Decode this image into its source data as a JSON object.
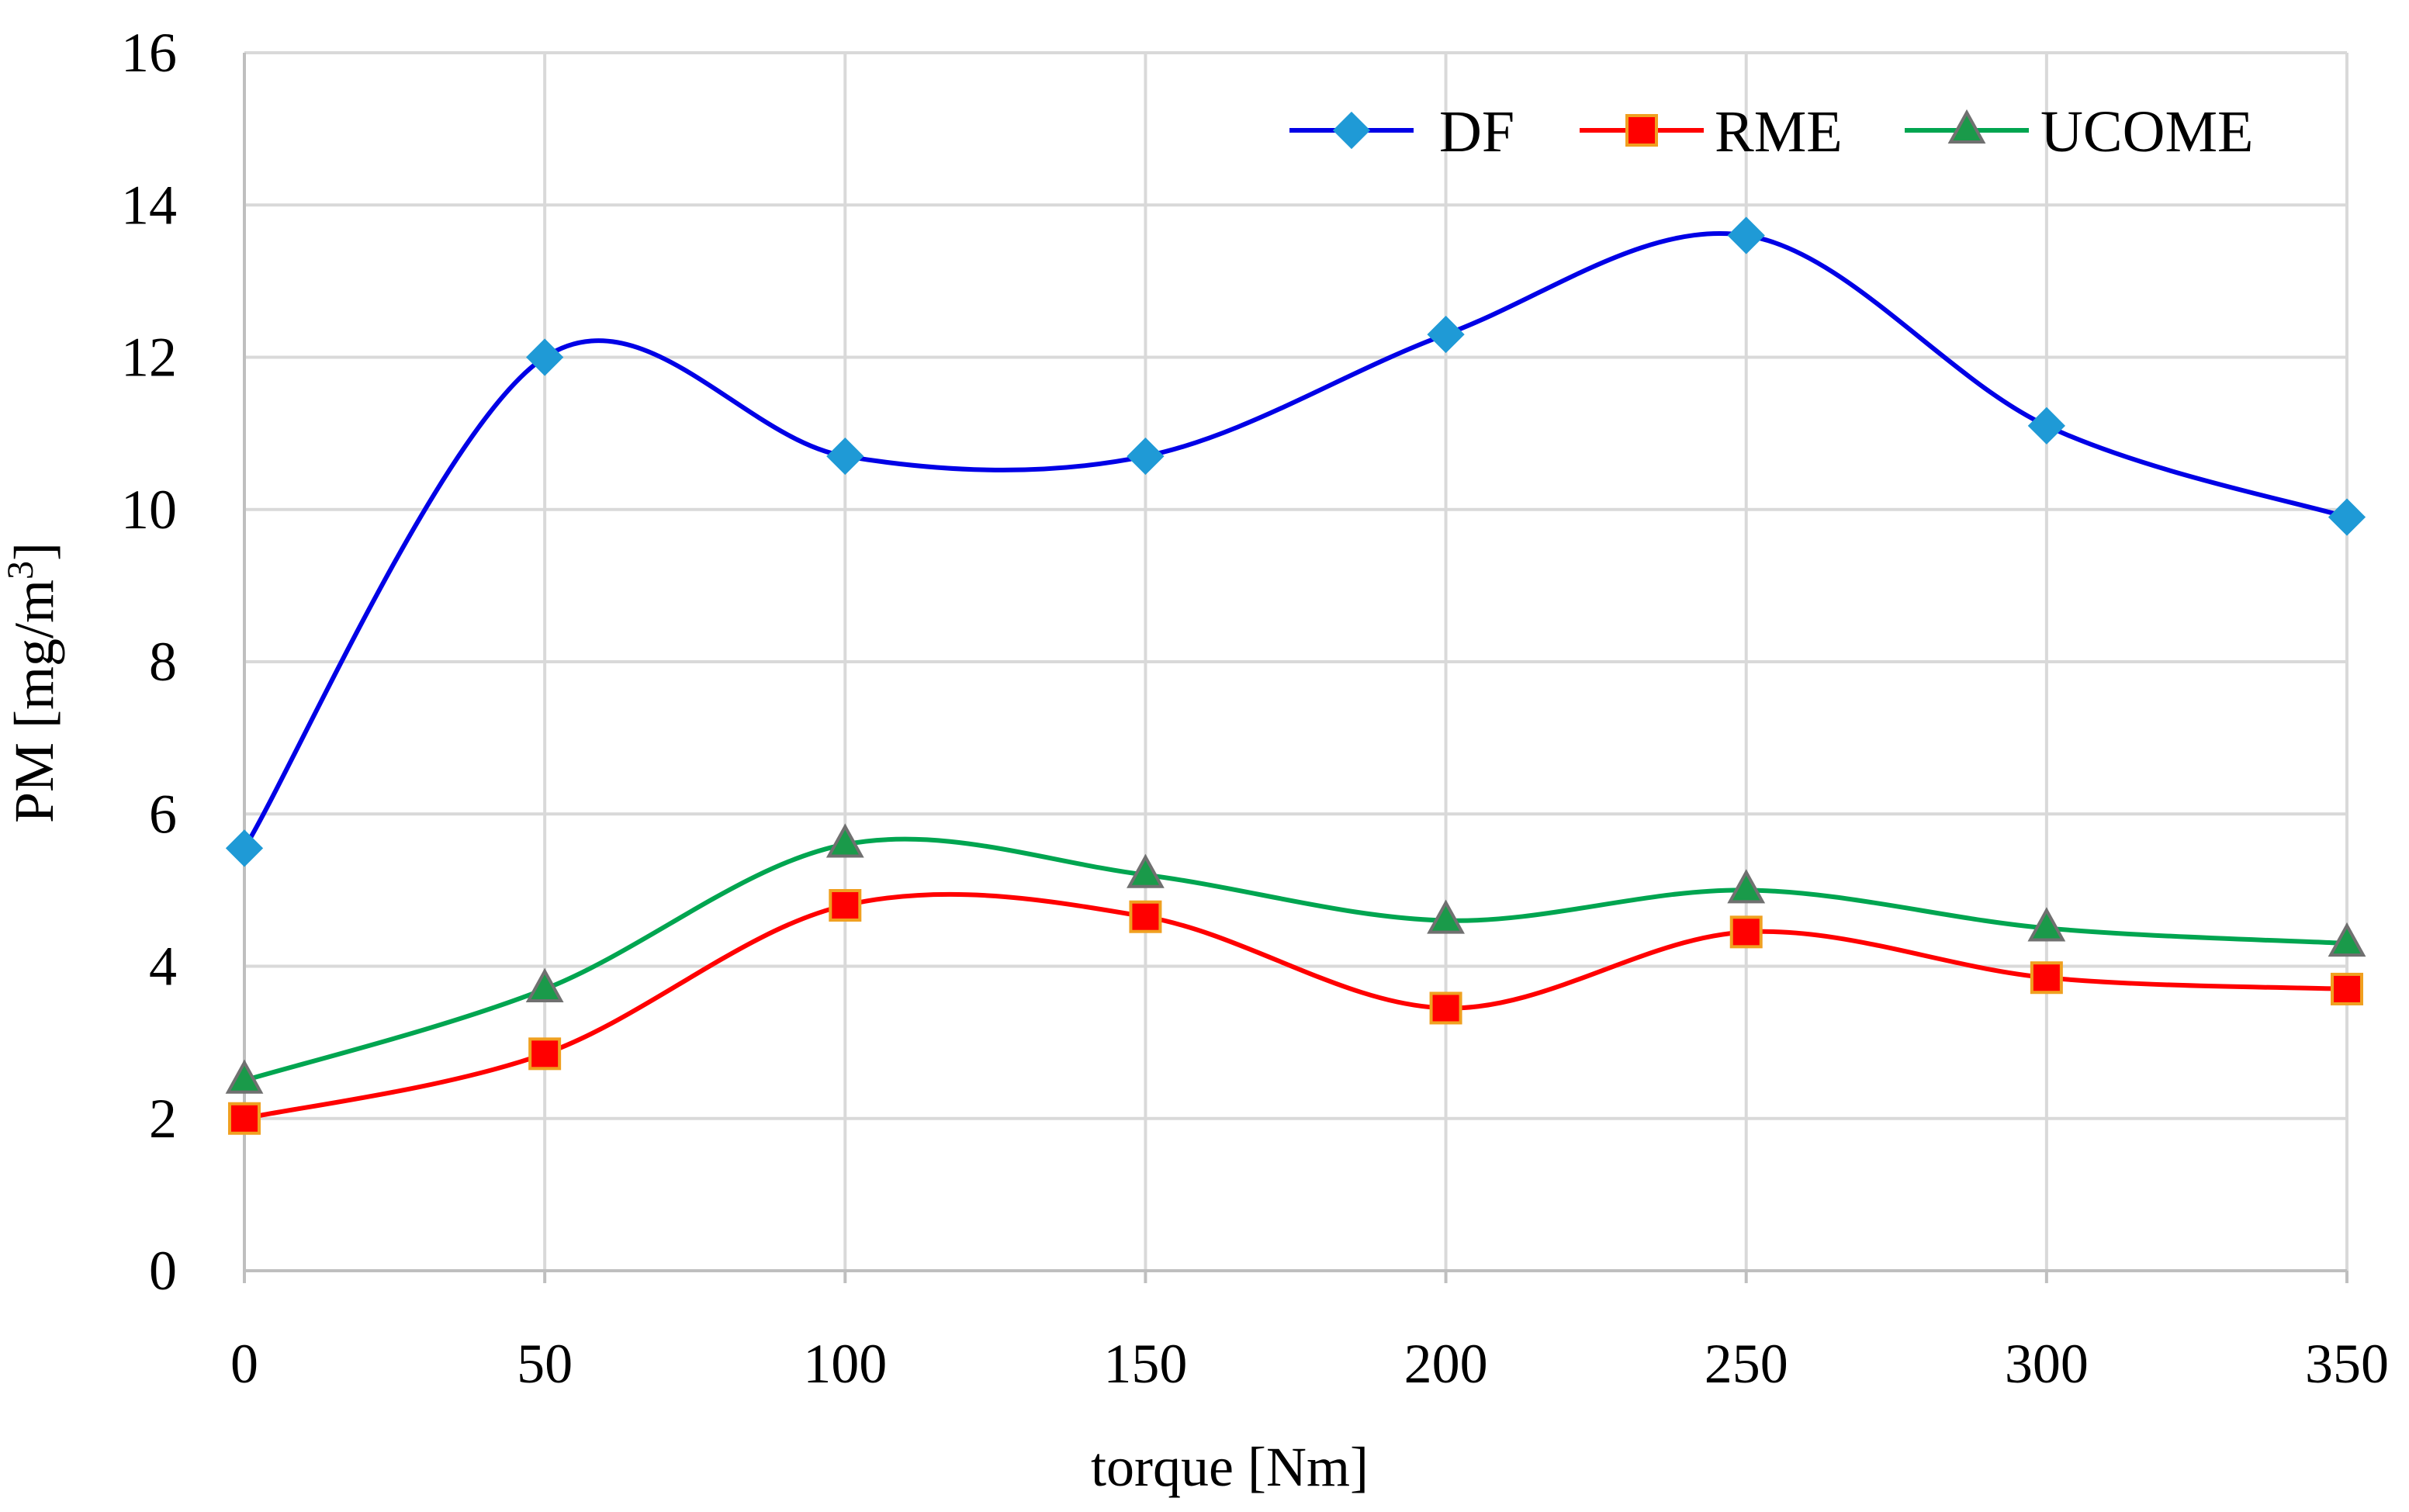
{
  "chart_data": {
    "type": "line",
    "title": "",
    "xlabel": "torque [Nm]",
    "ylabel": "PM [mg/m",
    "ylabel_sup": "3",
    "ylabel_end": "]",
    "x": [
      0,
      50,
      100,
      150,
      200,
      250,
      300,
      350
    ],
    "x_tick_labels": [
      "0",
      "50",
      "100",
      "150",
      "200",
      "250",
      "300",
      "350"
    ],
    "xlim": [
      0,
      350
    ],
    "ylim": [
      0,
      16
    ],
    "y_ticks": [
      0,
      2,
      4,
      6,
      8,
      10,
      12,
      14,
      16
    ],
    "y_tick_labels": [
      "0",
      "2",
      "4",
      "6",
      "8",
      "10",
      "12",
      "14",
      "16"
    ],
    "grid": true,
    "smooth": true,
    "legend_position": "top-right",
    "series": [
      {
        "name": "DF",
        "marker": "diamond",
        "line_color": "#0000e6",
        "marker_fill": "#1f9ad6",
        "marker_stroke": "#1f9ad6",
        "values": [
          5.55,
          12.0,
          10.7,
          10.7,
          12.3,
          13.6,
          11.1,
          9.9
        ]
      },
      {
        "name": "RME",
        "marker": "square",
        "line_color": "#ff0000",
        "marker_fill": "#ff0000",
        "marker_stroke": "#f0a020",
        "values": [
          2.0,
          2.85,
          4.8,
          4.65,
          3.45,
          4.45,
          3.85,
          3.7
        ]
      },
      {
        "name": "UCOME",
        "marker": "triangle",
        "line_color": "#00a550",
        "marker_fill": "#1a9a4a",
        "marker_stroke": "#707070",
        "values": [
          2.5,
          3.7,
          5.6,
          5.2,
          4.6,
          5.0,
          4.5,
          4.3
        ]
      }
    ]
  }
}
